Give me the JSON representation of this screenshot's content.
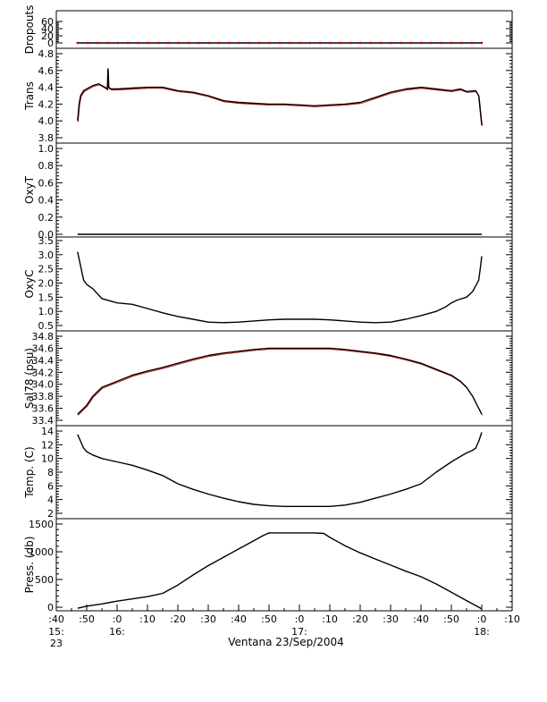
{
  "chart_data": {
    "type": "line",
    "caption": "Ventana 23/Sep/2004",
    "x_axis": {
      "tick_labels": [
        ":40",
        ":50",
        ":0",
        ":10",
        ":20",
        ":30",
        ":40",
        ":50",
        ":0",
        ":10",
        ":20",
        ":30",
        ":40",
        ":50",
        ":0",
        ":10"
      ],
      "hour_labels": [
        {
          "at": ":40",
          "lines": [
            "15:",
            "23"
          ]
        },
        {
          "at": ":0",
          "lines": [
            "16:"
          ]
        },
        {
          "at": ":0",
          "lines": [
            "17:"
          ]
        },
        {
          "at": ":0",
          "lines": [
            "18:"
          ]
        }
      ],
      "tick_minutes": [
        -20,
        -10,
        0,
        10,
        20,
        30,
        40,
        50,
        60,
        70,
        80,
        90,
        100,
        110,
        120,
        130
      ],
      "range_minutes": [
        -20,
        130
      ],
      "unit_note": "minutes after 16:00"
    },
    "line_color": "#000000",
    "noise_color": "#cc0000",
    "panels": [
      {
        "ylabel": "Dropouts",
        "ylim": [
          0,
          60
        ],
        "yticks": [
          0,
          20,
          40,
          60
        ],
        "tick_labels": [
          "0",
          "20",
          "40",
          "60"
        ],
        "markers": true,
        "t": [
          -13,
          120
        ],
        "y": [
          0,
          0
        ]
      },
      {
        "ylabel": "Trans",
        "ylim": [
          3.8,
          4.8
        ],
        "yticks": [
          3.8,
          4.0,
          4.2,
          4.4,
          4.6,
          4.8
        ],
        "tick_labels": [
          "3.8",
          "4.0",
          "4.2",
          "4.4",
          "4.6",
          "4.8"
        ],
        "noisy": true,
        "t": [
          -13,
          -12.5,
          -12,
          -11,
          -10,
          -8,
          -6,
          -5,
          -4,
          -3.2,
          -3,
          -2.8,
          -2,
          0,
          5,
          10,
          15,
          20,
          25,
          30,
          35,
          40,
          45,
          50,
          55,
          60,
          65,
          70,
          75,
          80,
          85,
          90,
          95,
          100,
          105,
          110,
          113,
          115,
          118,
          119,
          120
        ],
        "y": [
          4.0,
          4.2,
          4.3,
          4.36,
          4.38,
          4.42,
          4.44,
          4.42,
          4.4,
          4.38,
          4.62,
          4.4,
          4.38,
          4.38,
          4.39,
          4.4,
          4.4,
          4.36,
          4.34,
          4.3,
          4.24,
          4.22,
          4.21,
          4.2,
          4.2,
          4.19,
          4.18,
          4.19,
          4.2,
          4.22,
          4.28,
          4.34,
          4.38,
          4.4,
          4.38,
          4.36,
          4.38,
          4.35,
          4.36,
          4.3,
          3.95
        ]
      },
      {
        "ylabel": "OxyT",
        "ylim": [
          0,
          1.0
        ],
        "yticks": [
          0.0,
          0.2,
          0.4,
          0.6,
          0.8,
          1.0
        ],
        "tick_labels": [
          "0.0",
          "0.2",
          "0.4",
          "0.6",
          "0.8",
          "1.0"
        ],
        "t": [
          -13,
          120
        ],
        "y": [
          0,
          0
        ]
      },
      {
        "ylabel": "OxyC",
        "ylim": [
          0.5,
          3.5
        ],
        "yticks": [
          0.5,
          1.0,
          1.5,
          2.0,
          2.5,
          3.0,
          3.5
        ],
        "tick_labels": [
          "0.5",
          "1.0",
          "1.5",
          "2.0",
          "2.5",
          "3.0",
          "3.5"
        ],
        "t": [
          -13,
          -12,
          -11,
          -10,
          -8,
          -5,
          0,
          5,
          10,
          15,
          20,
          25,
          30,
          35,
          40,
          45,
          50,
          55,
          60,
          65,
          70,
          75,
          80,
          85,
          90,
          95,
          100,
          105,
          108,
          110,
          112,
          115,
          117,
          118,
          119,
          119.5,
          120
        ],
        "y": [
          3.1,
          2.6,
          2.1,
          1.95,
          1.8,
          1.45,
          1.3,
          1.25,
          1.1,
          0.95,
          0.82,
          0.72,
          0.62,
          0.6,
          0.62,
          0.66,
          0.7,
          0.72,
          0.72,
          0.72,
          0.7,
          0.66,
          0.62,
          0.6,
          0.62,
          0.72,
          0.85,
          1.0,
          1.15,
          1.3,
          1.4,
          1.5,
          1.7,
          1.9,
          2.1,
          2.5,
          2.95
        ]
      },
      {
        "ylabel": "Sal78 (psu)",
        "ylim": [
          33.4,
          34.8
        ],
        "yticks": [
          33.4,
          33.6,
          33.8,
          34.0,
          34.2,
          34.4,
          34.6,
          34.8
        ],
        "tick_labels": [
          "33.4",
          "33.6",
          "33.8",
          "34.0",
          "34.2",
          "34.4",
          "34.6",
          "34.8"
        ],
        "noisy": true,
        "t": [
          -13,
          -12,
          -10,
          -8,
          -5,
          0,
          5,
          10,
          15,
          20,
          25,
          30,
          35,
          40,
          45,
          50,
          55,
          60,
          65,
          70,
          75,
          80,
          85,
          90,
          95,
          100,
          105,
          110,
          113,
          115,
          117,
          118,
          119,
          120
        ],
        "y": [
          33.5,
          33.55,
          33.65,
          33.8,
          33.95,
          34.05,
          34.15,
          34.22,
          34.28,
          34.35,
          34.42,
          34.48,
          34.52,
          34.55,
          34.58,
          34.6,
          34.6,
          34.6,
          34.6,
          34.6,
          34.58,
          34.55,
          34.52,
          34.48,
          34.42,
          34.35,
          34.25,
          34.15,
          34.05,
          33.95,
          33.8,
          33.7,
          33.6,
          33.5
        ]
      },
      {
        "ylabel": "Temp. (C)",
        "ylim": [
          2,
          14
        ],
        "yticks": [
          2,
          4,
          6,
          8,
          10,
          12,
          14
        ],
        "tick_labels": [
          "2",
          "4",
          "6",
          "8",
          "10",
          "12",
          "14"
        ],
        "t": [
          -13,
          -12,
          -11,
          -10,
          -8,
          -5,
          -2,
          0,
          5,
          10,
          15,
          20,
          25,
          30,
          35,
          40,
          45,
          50,
          55,
          60,
          65,
          70,
          75,
          80,
          85,
          90,
          95,
          100,
          105,
          110,
          113,
          115,
          117,
          118,
          119,
          120
        ],
        "y": [
          13.5,
          12.5,
          11.5,
          11.0,
          10.5,
          10.0,
          9.7,
          9.5,
          9.0,
          8.3,
          7.5,
          6.3,
          5.5,
          4.8,
          4.2,
          3.7,
          3.3,
          3.1,
          3.0,
          3.0,
          3.0,
          3.0,
          3.2,
          3.6,
          4.2,
          4.8,
          5.5,
          6.3,
          8.0,
          9.5,
          10.3,
          10.8,
          11.2,
          11.5,
          12.5,
          13.8
        ]
      },
      {
        "ylabel": "Press. (db)",
        "ylim": [
          0,
          1500
        ],
        "yticks": [
          0,
          500,
          1000,
          1500
        ],
        "tick_labels": [
          "0",
          "500",
          "1000",
          "1500"
        ],
        "t": [
          -13,
          -10,
          -5,
          0,
          5,
          10,
          15,
          20,
          25,
          30,
          35,
          40,
          45,
          48,
          50,
          55,
          60,
          65,
          68,
          70,
          75,
          80,
          85,
          90,
          95,
          100,
          105,
          110,
          115,
          118,
          120
        ],
        "y": [
          -20,
          20,
          60,
          110,
          150,
          190,
          250,
          400,
          580,
          750,
          900,
          1050,
          1200,
          1290,
          1340,
          1340,
          1340,
          1340,
          1330,
          1260,
          1110,
          980,
          870,
          760,
          650,
          550,
          420,
          270,
          120,
          30,
          -30
        ]
      }
    ]
  }
}
